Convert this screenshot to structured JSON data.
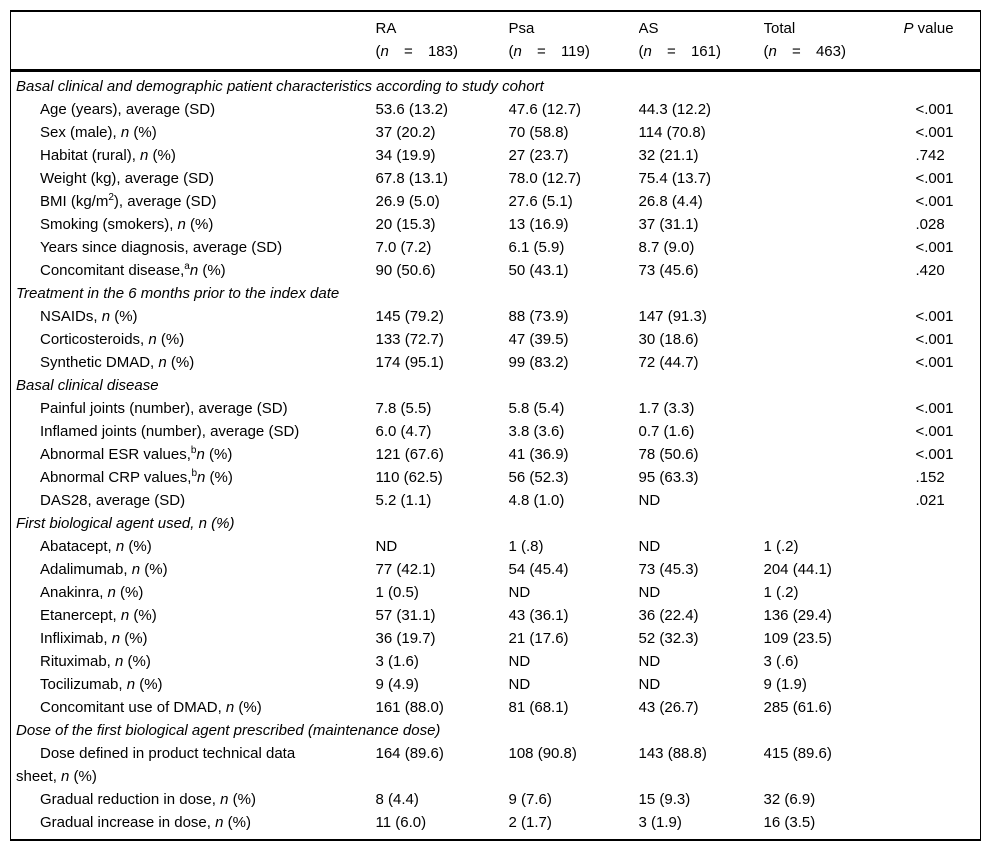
{
  "table": {
    "header": {
      "group_cols": [
        {
          "name": "RA",
          "n_line": [
            {
              "t": "("
            },
            {
              "t": "n",
              "i": true
            },
            {
              "t": " = 183)"
            }
          ]
        },
        {
          "name": "Psa",
          "n_line": [
            {
              "t": "("
            },
            {
              "t": "n",
              "i": true
            },
            {
              "t": " = 119)"
            }
          ]
        },
        {
          "name": "AS",
          "n_line": [
            {
              "t": "("
            },
            {
              "t": "n",
              "i": true
            },
            {
              "t": " = 161)"
            }
          ]
        },
        {
          "name": "Total",
          "n_line": [
            {
              "t": "("
            },
            {
              "t": "n",
              "i": true
            },
            {
              "t": " = 463)"
            }
          ]
        }
      ],
      "p_col": [
        {
          "t": "P",
          "i": true
        },
        {
          "t": " value"
        }
      ]
    },
    "sections": [
      {
        "title": "Basal clinical and demographic patient characteristics according to study cohort",
        "rows": [
          {
            "label": [
              {
                "t": "Age (years), average (SD)"
              }
            ],
            "values": [
              "53.6 (13.2)",
              "47.6 (12.7)",
              "44.3 (12.2)",
              "",
              "<.001"
            ]
          },
          {
            "label": [
              {
                "t": "Sex (male), "
              },
              {
                "t": "n",
                "i": true
              },
              {
                "t": " (%)"
              }
            ],
            "values": [
              "37 (20.2)",
              "70 (58.8)",
              "114 (70.8)",
              "",
              "<.001"
            ]
          },
          {
            "label": [
              {
                "t": "Habitat (rural), "
              },
              {
                "t": "n",
                "i": true
              },
              {
                "t": " (%)"
              }
            ],
            "values": [
              "34 (19.9)",
              "27 (23.7)",
              "32 (21.1)",
              "",
              ".742"
            ]
          },
          {
            "label": [
              {
                "t": "Weight (kg), average (SD)"
              }
            ],
            "values": [
              "67.8 (13.1)",
              "78.0 (12.7)",
              "75.4 (13.7)",
              "",
              "<.001"
            ]
          },
          {
            "label": [
              {
                "t": "BMI (kg/m"
              },
              {
                "t": "2",
                "s": true
              },
              {
                "t": "), average (SD)"
              }
            ],
            "values": [
              "26.9 (5.0)",
              "27.6 (5.1)",
              "26.8 (4.4)",
              "",
              "<.001"
            ]
          },
          {
            "label": [
              {
                "t": "Smoking (smokers), "
              },
              {
                "t": "n",
                "i": true
              },
              {
                "t": " (%)"
              }
            ],
            "values": [
              "20 (15.3)",
              "13 (16.9)",
              "37 (31.1)",
              "",
              ".028"
            ]
          },
          {
            "label": [
              {
                "t": "Years since diagnosis, average (SD)"
              }
            ],
            "values": [
              "7.0 (7.2)",
              "6.1 (5.9)",
              "8.7 (9.0)",
              "",
              "<.001"
            ]
          },
          {
            "label": [
              {
                "t": "Concomitant disease,"
              },
              {
                "t": "a",
                "s": true
              },
              {
                "t": "n",
                "i": true
              },
              {
                "t": " (%)"
              }
            ],
            "values": [
              "90 (50.6)",
              "50 (43.1)",
              "73 (45.6)",
              "",
              ".420"
            ]
          }
        ]
      },
      {
        "title": "Treatment in the 6 months prior to the index date",
        "rows": [
          {
            "label": [
              {
                "t": "NSAIDs, "
              },
              {
                "t": "n",
                "i": true
              },
              {
                "t": " (%)"
              }
            ],
            "values": [
              "145 (79.2)",
              "88 (73.9)",
              "147 (91.3)",
              "",
              "<.001"
            ]
          },
          {
            "label": [
              {
                "t": "Corticosteroids, "
              },
              {
                "t": "n",
                "i": true
              },
              {
                "t": " (%)"
              }
            ],
            "values": [
              "133 (72.7)",
              "47 (39.5)",
              "30 (18.6)",
              "",
              "<.001"
            ]
          },
          {
            "label": [
              {
                "t": "Synthetic DMAD, "
              },
              {
                "t": "n",
                "i": true
              },
              {
                "t": " (%)"
              }
            ],
            "values": [
              "174 (95.1)",
              "99 (83.2)",
              "72 (44.7)",
              "",
              "<.001"
            ]
          }
        ]
      },
      {
        "title": "Basal clinical disease",
        "rows": [
          {
            "label": [
              {
                "t": "Painful joints (number), average (SD)"
              }
            ],
            "values": [
              "7.8 (5.5)",
              "5.8 (5.4)",
              "1.7 (3.3)",
              "",
              "<.001"
            ]
          },
          {
            "label": [
              {
                "t": "Inflamed joints (number), average (SD)"
              }
            ],
            "values": [
              "6.0 (4.7)",
              "3.8 (3.6)",
              "0.7 (1.6)",
              "",
              "<.001"
            ]
          },
          {
            "label": [
              {
                "t": "Abnormal ESR values,"
              },
              {
                "t": "b",
                "s": true
              },
              {
                "t": "n",
                "i": true
              },
              {
                "t": " (%)"
              }
            ],
            "values": [
              "121 (67.6)",
              "41 (36.9)",
              "78 (50.6)",
              "",
              "<.001"
            ]
          },
          {
            "label": [
              {
                "t": "Abnormal CRP values,"
              },
              {
                "t": "b",
                "s": true
              },
              {
                "t": "n",
                "i": true
              },
              {
                "t": " (%)"
              }
            ],
            "values": [
              "110 (62.5)",
              "56 (52.3)",
              "95 (63.3)",
              "",
              ".152"
            ]
          },
          {
            "label": [
              {
                "t": "DAS28, average (SD)"
              }
            ],
            "values": [
              "5.2 (1.1)",
              "4.8 (1.0)",
              "ND",
              "",
              ".021"
            ]
          }
        ]
      },
      {
        "title": "First biological agent used, n (%)",
        "rows": [
          {
            "label": [
              {
                "t": "Abatacept, "
              },
              {
                "t": "n",
                "i": true
              },
              {
                "t": " (%)"
              }
            ],
            "values": [
              "ND",
              "1 (.8)",
              "ND",
              "1 (.2)",
              ""
            ]
          },
          {
            "label": [
              {
                "t": "Adalimumab, "
              },
              {
                "t": "n",
                "i": true
              },
              {
                "t": " (%)"
              }
            ],
            "values": [
              "77 (42.1)",
              "54 (45.4)",
              "73 (45.3)",
              "204 (44.1)",
              ""
            ]
          },
          {
            "label": [
              {
                "t": "Anakinra, "
              },
              {
                "t": "n",
                "i": true
              },
              {
                "t": " (%)"
              }
            ],
            "values": [
              "1 (0.5)",
              "ND",
              "ND",
              "1 (.2)",
              ""
            ]
          },
          {
            "label": [
              {
                "t": "Etanercept, "
              },
              {
                "t": "n",
                "i": true
              },
              {
                "t": " (%)"
              }
            ],
            "values": [
              "57 (31.1)",
              "43 (36.1)",
              "36 (22.4)",
              "136 (29.4)",
              ""
            ]
          },
          {
            "label": [
              {
                "t": "Infliximab, "
              },
              {
                "t": "n",
                "i": true
              },
              {
                "t": " (%)"
              }
            ],
            "values": [
              "36 (19.7)",
              "21 (17.6)",
              "52 (32.3)",
              "109 (23.5)",
              ""
            ]
          },
          {
            "label": [
              {
                "t": "Rituximab, "
              },
              {
                "t": "n",
                "i": true
              },
              {
                "t": " (%)"
              }
            ],
            "values": [
              "3 (1.6)",
              "ND",
              "ND",
              "3 (.6)",
              ""
            ]
          },
          {
            "label": [
              {
                "t": "Tocilizumab, "
              },
              {
                "t": "n",
                "i": true
              },
              {
                "t": " (%)"
              }
            ],
            "values": [
              "9 (4.9)",
              "ND",
              "ND",
              "9 (1.9)",
              ""
            ]
          },
          {
            "label": [
              {
                "t": "Concomitant use of DMAD, "
              },
              {
                "t": "n",
                "i": true
              },
              {
                "t": " (%)"
              }
            ],
            "values": [
              "161 (88.0)",
              "81 (68.1)",
              "43 (26.7)",
              "285 (61.6)",
              ""
            ]
          }
        ]
      },
      {
        "title": "Dose of the first biological agent prescribed (maintenance dose)",
        "rows": [
          {
            "label": [
              {
                "t": "Dose defined in product technical data"
              },
              {
                "br": true
              },
              {
                "t": "sheet, "
              },
              {
                "t": "n",
                "i": true
              },
              {
                "t": " (%)"
              }
            ],
            "values": [
              "164 (89.6)",
              "108 (90.8)",
              "143 (88.8)",
              "415 (89.6)",
              ""
            ]
          },
          {
            "label": [
              {
                "t": "Gradual reduction in dose, "
              },
              {
                "t": "n",
                "i": true
              },
              {
                "t": " (%)"
              }
            ],
            "values": [
              "8 (4.4)",
              "9 (7.6)",
              "15 (9.3)",
              "32 (6.9)",
              ""
            ]
          },
          {
            "label": [
              {
                "t": "Gradual increase in dose, "
              },
              {
                "t": "n",
                "i": true
              },
              {
                "t": " (%)"
              }
            ],
            "values": [
              "11 (6.0)",
              "2 (1.7)",
              "3 (1.9)",
              "16 (3.5)",
              ""
            ]
          }
        ]
      }
    ]
  }
}
